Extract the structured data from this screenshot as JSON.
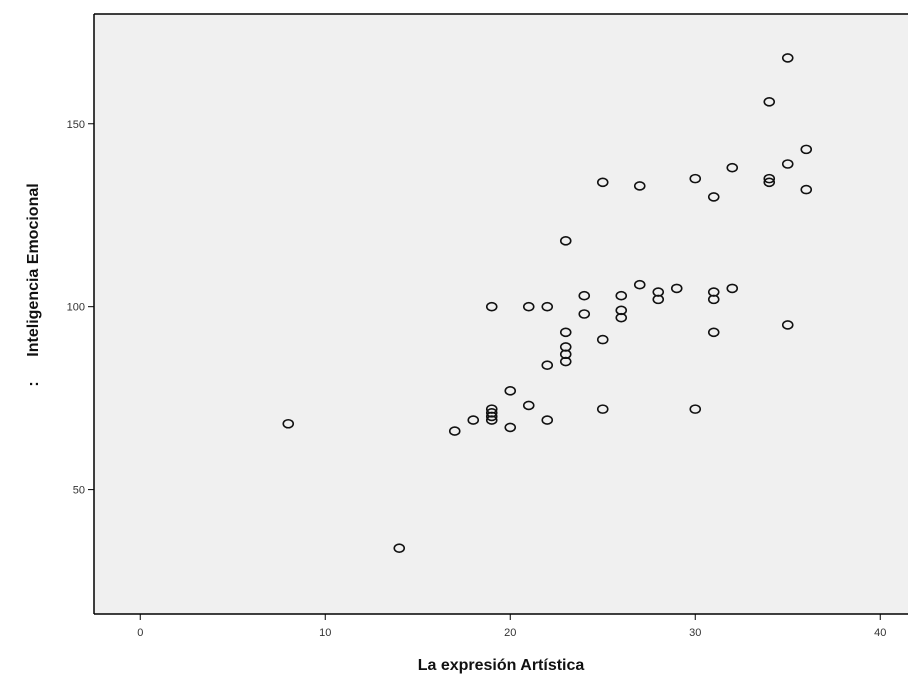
{
  "chart_data": {
    "type": "scatter",
    "title": "",
    "xlabel": "La expresión Artística",
    "ylabel": "Inteligencia Emocional",
    "ylabel_prefix": ":",
    "xlim": [
      -2.5,
      41.5
    ],
    "ylim": [
      16,
      180
    ],
    "x_ticks": [
      0,
      10,
      20,
      30,
      40
    ],
    "y_ticks": [
      50,
      100,
      150
    ],
    "grid": false,
    "legend": "none",
    "colors": {
      "plot_background": "#f0f0f0",
      "marker": "#111111",
      "axis": "#000000"
    },
    "series": [
      {
        "marker": "open-circle",
        "points": [
          [
            8,
            68
          ],
          [
            14,
            34
          ],
          [
            17,
            66
          ],
          [
            18,
            69
          ],
          [
            19,
            69
          ],
          [
            19,
            70
          ],
          [
            19,
            71
          ],
          [
            19,
            72
          ],
          [
            19,
            100
          ],
          [
            20,
            67
          ],
          [
            20,
            77
          ],
          [
            21,
            73
          ],
          [
            21,
            100
          ],
          [
            22,
            69
          ],
          [
            22,
            84
          ],
          [
            22,
            100
          ],
          [
            23,
            85
          ],
          [
            23,
            87
          ],
          [
            23,
            89
          ],
          [
            23,
            93
          ],
          [
            23,
            118
          ],
          [
            24,
            98
          ],
          [
            24,
            103
          ],
          [
            25,
            72
          ],
          [
            25,
            91
          ],
          [
            25,
            134
          ],
          [
            26,
            97
          ],
          [
            26,
            99
          ],
          [
            26,
            103
          ],
          [
            27,
            106
          ],
          [
            27,
            133
          ],
          [
            28,
            102
          ],
          [
            28,
            104
          ],
          [
            29,
            105
          ],
          [
            30,
            72
          ],
          [
            30,
            135
          ],
          [
            31,
            93
          ],
          [
            31,
            102
          ],
          [
            31,
            104
          ],
          [
            31,
            130
          ],
          [
            32,
            105
          ],
          [
            32,
            138
          ],
          [
            34,
            134
          ],
          [
            34,
            135
          ],
          [
            34,
            156
          ],
          [
            35,
            95
          ],
          [
            35,
            139
          ],
          [
            35,
            168
          ],
          [
            36,
            132
          ],
          [
            36,
            143
          ]
        ]
      }
    ]
  }
}
